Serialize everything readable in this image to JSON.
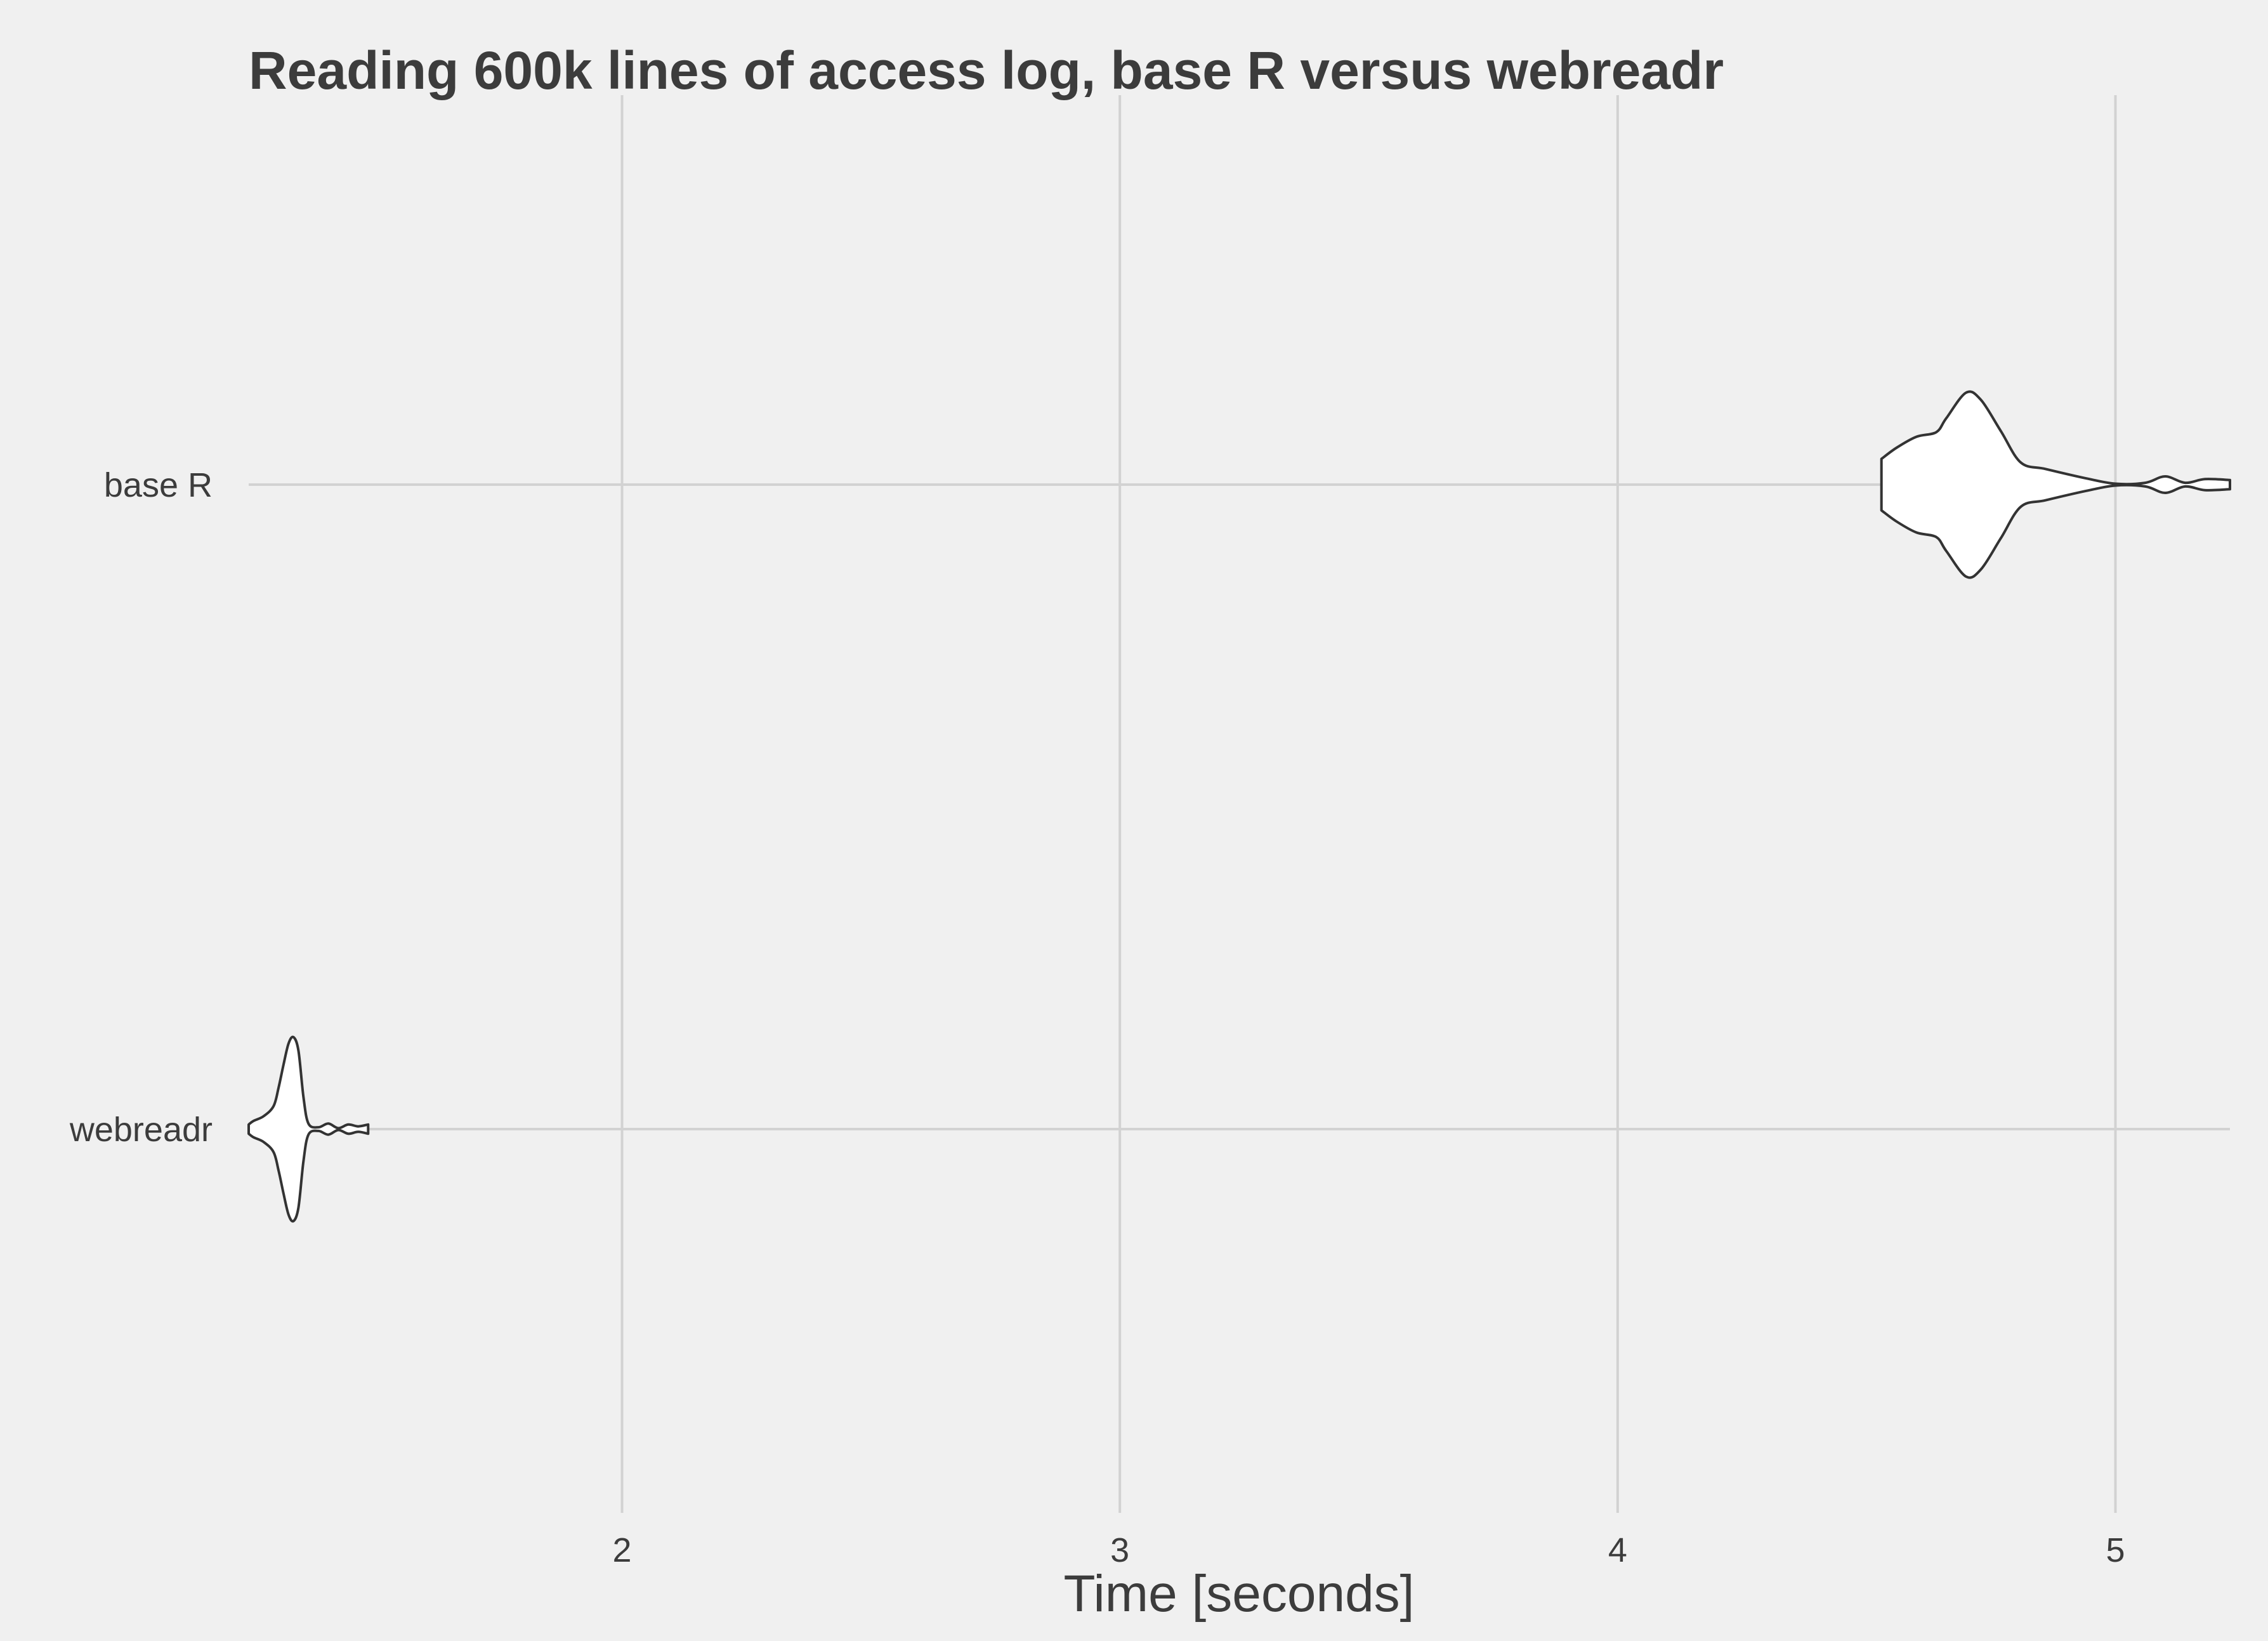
{
  "chart_data": {
    "type": "violin",
    "orientation": "horizontal",
    "title": "Reading 600k lines of access log, base R versus webreadr",
    "xlabel": "Time [seconds]",
    "ylabel": "",
    "xlim": [
      1.25,
      5.23
    ],
    "x_ticks": [
      2,
      3,
      4,
      5
    ],
    "x_tick_labels": [
      "2",
      "3",
      "4",
      "5"
    ],
    "categories": [
      "base R",
      "webreadr"
    ],
    "grid": true,
    "legend": "none",
    "colors": {
      "background": "#f0f0f0",
      "grid": "#d2d2d2",
      "violin_fill": "#ffffff",
      "violin_stroke": "#333333",
      "text": "#3c3c3c"
    },
    "series": [
      {
        "category": "base R",
        "min": 4.53,
        "max": 5.23,
        "density_profile": [
          {
            "x": 4.53,
            "w": 0.28
          },
          {
            "x": 4.56,
            "w": 0.4
          },
          {
            "x": 4.6,
            "w": 0.52
          },
          {
            "x": 4.64,
            "w": 0.57
          },
          {
            "x": 4.66,
            "w": 0.72
          },
          {
            "x": 4.7,
            "w": 1.0
          },
          {
            "x": 4.73,
            "w": 0.92
          },
          {
            "x": 4.77,
            "w": 0.58
          },
          {
            "x": 4.81,
            "w": 0.24
          },
          {
            "x": 4.86,
            "w": 0.17
          },
          {
            "x": 4.94,
            "w": 0.07
          },
          {
            "x": 5.0,
            "w": 0.01
          },
          {
            "x": 5.06,
            "w": 0.02
          },
          {
            "x": 5.1,
            "w": 0.09
          },
          {
            "x": 5.14,
            "w": 0.02
          },
          {
            "x": 5.18,
            "w": 0.06
          },
          {
            "x": 5.23,
            "w": 0.05
          }
        ]
      },
      {
        "category": "webreadr",
        "min": 1.25,
        "max": 1.49,
        "density_profile": [
          {
            "x": 1.25,
            "w": 0.05
          },
          {
            "x": 1.26,
            "w": 0.09
          },
          {
            "x": 1.28,
            "w": 0.14
          },
          {
            "x": 1.3,
            "w": 0.25
          },
          {
            "x": 1.31,
            "w": 0.45
          },
          {
            "x": 1.32,
            "w": 0.7
          },
          {
            "x": 1.33,
            "w": 0.93
          },
          {
            "x": 1.34,
            "w": 1.0
          },
          {
            "x": 1.35,
            "w": 0.85
          },
          {
            "x": 1.36,
            "w": 0.35
          },
          {
            "x": 1.37,
            "w": 0.06
          },
          {
            "x": 1.39,
            "w": 0.02
          },
          {
            "x": 1.41,
            "w": 0.06
          },
          {
            "x": 1.43,
            "w": 0.01
          },
          {
            "x": 1.45,
            "w": 0.05
          },
          {
            "x": 1.47,
            "w": 0.03
          },
          {
            "x": 1.49,
            "w": 0.05
          }
        ]
      }
    ]
  }
}
